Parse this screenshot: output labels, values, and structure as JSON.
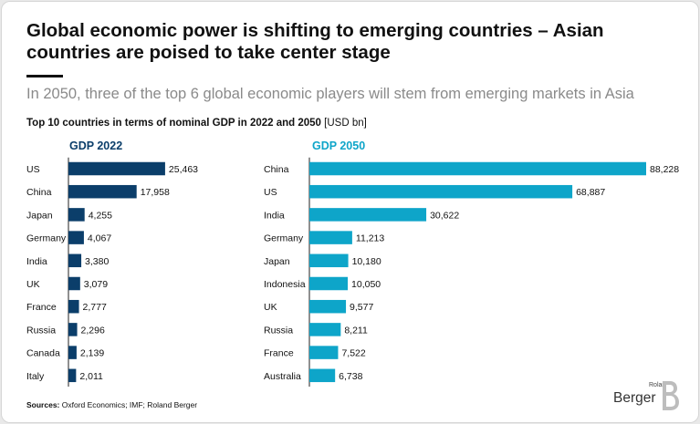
{
  "header": {
    "title": "Global economic power is shifting to emerging countries – Asian countries are poised to take center stage",
    "subtitle": "In 2050, three of the top 6 global economic players will stem from emerging markets in Asia",
    "chart_title_bold": "Top 10 countries in terms of nominal GDP in 2022 and 2050",
    "chart_title_unit": "[USD bn]"
  },
  "footer": {
    "sources_label": "Sources:",
    "sources_text": "Oxford Economics; IMF; Roland Berger",
    "logo_top": "Roland",
    "logo_main": "Berger"
  },
  "colors": {
    "gdp2022": "#0b3e6a",
    "gdp2050": "#0ea5c9",
    "axis": "#222222"
  },
  "chart_data": [
    {
      "type": "bar",
      "orientation": "horizontal",
      "title": "GDP 2022",
      "unit": "USD bn",
      "categories": [
        "US",
        "China",
        "Japan",
        "Germany",
        "India",
        "UK",
        "France",
        "Russia",
        "Canada",
        "Italy"
      ],
      "values": [
        25463,
        17958,
        4255,
        4067,
        3380,
        3079,
        2777,
        2296,
        2139,
        2011
      ],
      "labels": [
        "25,463",
        "17,958",
        "4,255",
        "4,067",
        "3,380",
        "3,079",
        "2,777",
        "2,296",
        "2,139",
        "2,011"
      ],
      "color": "#0b3e6a"
    },
    {
      "type": "bar",
      "orientation": "horizontal",
      "title": "GDP 2050",
      "unit": "USD bn",
      "categories": [
        "China",
        "US",
        "India",
        "Germany",
        "Japan",
        "Indonesia",
        "UK",
        "Russia",
        "France",
        "Australia"
      ],
      "values": [
        88228,
        68887,
        30622,
        11213,
        10180,
        10050,
        9577,
        8211,
        7522,
        6738
      ],
      "labels": [
        "88,228",
        "68,887",
        "30,622",
        "11,213",
        "10,180",
        "10,050",
        "9,577",
        "8,211",
        "7,522",
        "6,738"
      ],
      "color": "#0ea5c9"
    }
  ]
}
